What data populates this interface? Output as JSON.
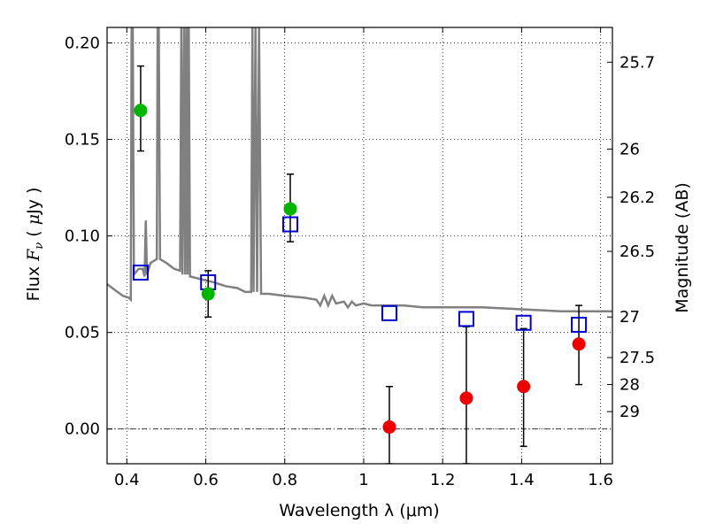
{
  "chart_data": {
    "type": "scatter",
    "xlabel": "Wavelength  λ (μm)",
    "ylabel_parts": [
      "Flux  ",
      "F",
      "ν",
      "  ( ",
      "μ",
      "Jy )"
    ],
    "ylabel_right": "Magnitude (AB)",
    "xlim": [
      0.35,
      1.63
    ],
    "ylim": [
      -0.018,
      0.208
    ],
    "x_ticks": [
      0.4,
      0.6,
      0.8,
      1.0,
      1.2,
      1.4,
      1.6
    ],
    "x_tick_labels": [
      "0.4",
      "0.6",
      "0.8",
      "1",
      "1.2",
      "1.4",
      "1.6"
    ],
    "y_ticks": [
      0.0,
      0.05,
      0.1,
      0.15,
      0.2
    ],
    "y_tick_labels": [
      "0.00",
      "0.05",
      "0.10",
      "0.15",
      "0.20"
    ],
    "right_ticks": [
      {
        "label": "25.7",
        "flux": 0.19
      },
      {
        "label": "26",
        "flux": 0.145
      },
      {
        "label": "26.2",
        "flux": 0.12
      },
      {
        "label": "26.5",
        "flux": 0.092
      },
      {
        "label": "27",
        "flux": 0.058
      },
      {
        "label": "27.5",
        "flux": 0.037
      },
      {
        "label": "28",
        "flux": 0.023
      },
      {
        "label": "29",
        "flux": 0.009
      }
    ],
    "grid": true,
    "colors": {
      "detections": "#00b400",
      "upper_limits": "#ee0000",
      "model": "#0000cc",
      "sed": "#808080",
      "errorbar": "#000000"
    },
    "series": [
      {
        "marker": "green-circle",
        "points": [
          {
            "x": 0.435,
            "y": 0.165,
            "err_lo": 0.144,
            "err_hi": 0.188
          },
          {
            "x": 0.606,
            "y": 0.07,
            "err_lo": 0.058,
            "err_hi": 0.082
          },
          {
            "x": 0.814,
            "y": 0.114,
            "err_lo": 0.097,
            "err_hi": 0.132
          }
        ]
      },
      {
        "marker": "red-circle",
        "points": [
          {
            "x": 1.065,
            "y": 0.001,
            "err_lo": -0.018,
            "err_hi": 0.022
          },
          {
            "x": 1.26,
            "y": 0.016,
            "err_lo": -0.018,
            "err_hi": 0.053
          },
          {
            "x": 1.405,
            "y": 0.022,
            "err_lo": -0.009,
            "err_hi": 0.052
          },
          {
            "x": 1.545,
            "y": 0.044,
            "err_lo": 0.023,
            "err_hi": 0.064
          }
        ]
      },
      {
        "marker": "blue-open-square",
        "points": [
          {
            "x": 0.435,
            "y": 0.081
          },
          {
            "x": 0.606,
            "y": 0.076
          },
          {
            "x": 0.814,
            "y": 0.106
          },
          {
            "x": 1.065,
            "y": 0.06
          },
          {
            "x": 1.26,
            "y": 0.057
          },
          {
            "x": 1.405,
            "y": 0.055
          },
          {
            "x": 1.545,
            "y": 0.054
          }
        ]
      },
      {
        "marker": "gray-line",
        "points": [
          [
            0.35,
            0.075
          ],
          [
            0.37,
            0.072
          ],
          [
            0.39,
            0.069
          ],
          [
            0.405,
            0.068
          ],
          [
            0.41,
            0.067
          ],
          [
            0.412,
            0.208
          ],
          [
            0.415,
            0.208
          ],
          [
            0.418,
            0.08
          ],
          [
            0.43,
            0.083
          ],
          [
            0.44,
            0.083
          ],
          [
            0.445,
            0.079
          ],
          [
            0.448,
            0.108
          ],
          [
            0.451,
            0.08
          ],
          [
            0.46,
            0.086
          ],
          [
            0.476,
            0.088
          ],
          [
            0.478,
            0.208
          ],
          [
            0.481,
            0.208
          ],
          [
            0.484,
            0.088
          ],
          [
            0.5,
            0.086
          ],
          [
            0.52,
            0.083
          ],
          [
            0.535,
            0.082
          ],
          [
            0.538,
            0.208
          ],
          [
            0.541,
            0.08
          ],
          [
            0.545,
            0.208
          ],
          [
            0.548,
            0.08
          ],
          [
            0.551,
            0.208
          ],
          [
            0.554,
            0.08
          ],
          [
            0.557,
            0.208
          ],
          [
            0.56,
            0.079
          ],
          [
            0.58,
            0.078
          ],
          [
            0.6,
            0.077
          ],
          [
            0.62,
            0.076
          ],
          [
            0.65,
            0.074
          ],
          [
            0.68,
            0.073
          ],
          [
            0.7,
            0.071
          ],
          [
            0.715,
            0.071
          ],
          [
            0.718,
            0.208
          ],
          [
            0.721,
            0.071
          ],
          [
            0.726,
            0.208
          ],
          [
            0.73,
            0.071
          ],
          [
            0.735,
            0.208
          ],
          [
            0.74,
            0.07
          ],
          [
            0.76,
            0.07
          ],
          [
            0.8,
            0.069
          ],
          [
            0.85,
            0.068
          ],
          [
            0.88,
            0.067
          ],
          [
            0.89,
            0.064
          ],
          [
            0.9,
            0.069
          ],
          [
            0.91,
            0.064
          ],
          [
            0.92,
            0.069
          ],
          [
            0.93,
            0.065
          ],
          [
            0.95,
            0.066
          ],
          [
            0.96,
            0.063
          ],
          [
            0.97,
            0.066
          ],
          [
            0.98,
            0.064
          ],
          [
            1.0,
            0.065
          ],
          [
            1.02,
            0.064
          ],
          [
            1.05,
            0.064
          ],
          [
            1.1,
            0.064
          ],
          [
            1.15,
            0.063
          ],
          [
            1.2,
            0.063
          ],
          [
            1.3,
            0.063
          ],
          [
            1.4,
            0.062
          ],
          [
            1.5,
            0.061
          ],
          [
            1.55,
            0.061
          ],
          [
            1.6,
            0.061
          ],
          [
            1.63,
            0.061
          ]
        ]
      }
    ]
  }
}
